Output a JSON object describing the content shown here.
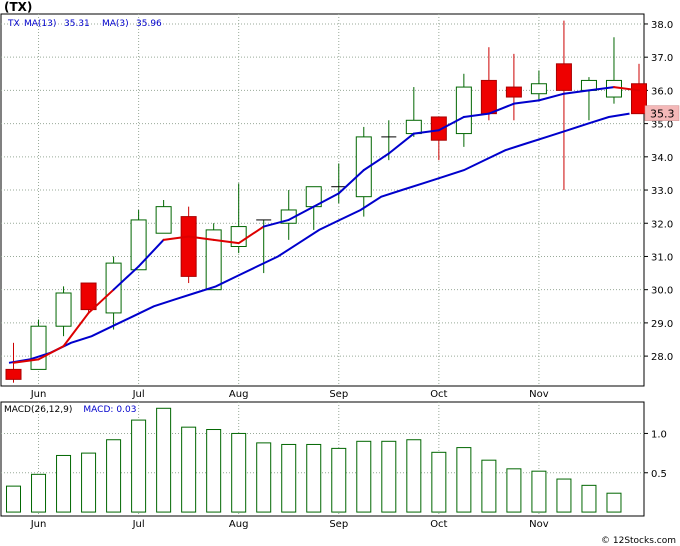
{
  "title": "(TX)",
  "footer": "© 12Stocks.com",
  "colors": {
    "ma_long": "#0000cc",
    "ma_short": "#dd0000",
    "up_candle": "#006600",
    "down_candle": "#ee0000",
    "macd": "#006600",
    "grid": "#99aa99",
    "last_price_label_bg": "#f4b8b8"
  },
  "chart_data": [
    {
      "type": "candlestick",
      "ticker": "TX",
      "legend": [
        {
          "label": "TX",
          "value": "",
          "color": "#0000cc"
        },
        {
          "label": "MA(13)",
          "value": "35.31",
          "color": "#0000cc"
        },
        {
          "label": "MA(3)",
          "value": "35.96",
          "color": "#0000cc"
        }
      ],
      "last_price_label": "35.3",
      "y_ticks": [
        "28.0",
        "29.0",
        "30.0",
        "31.0",
        "32.0",
        "33.0",
        "34.0",
        "35.0",
        "36.0",
        "37.0",
        "38.0"
      ],
      "ylim": [
        27.1,
        38.3
      ],
      "x_labels": [
        {
          "label": "Jun",
          "index": 1
        },
        {
          "label": "Jul",
          "index": 5
        },
        {
          "label": "Aug",
          "index": 9
        },
        {
          "label": "Sep",
          "index": 13
        },
        {
          "label": "Oct",
          "index": 17
        },
        {
          "label": "Nov",
          "index": 21
        }
      ],
      "candles": [
        {
          "o": 27.6,
          "h": 28.4,
          "l": 27.2,
          "c": 27.3
        },
        {
          "o": 27.6,
          "h": 29.1,
          "l": 27.6,
          "c": 28.9
        },
        {
          "o": 28.9,
          "h": 30.1,
          "l": 28.6,
          "c": 29.9
        },
        {
          "o": 30.2,
          "h": 30.2,
          "l": 29.3,
          "c": 29.4
        },
        {
          "o": 29.3,
          "h": 31.0,
          "l": 28.8,
          "c": 30.8
        },
        {
          "o": 30.6,
          "h": 32.4,
          "l": 30.6,
          "c": 32.1
        },
        {
          "o": 31.7,
          "h": 32.7,
          "l": 31.7,
          "c": 32.5
        },
        {
          "o": 32.2,
          "h": 32.5,
          "l": 30.2,
          "c": 30.4
        },
        {
          "o": 30.0,
          "h": 32.0,
          "l": 30.0,
          "c": 31.8
        },
        {
          "o": 31.3,
          "h": 33.2,
          "l": 31.1,
          "c": 31.9
        },
        {
          "o": 32.1,
          "h": 32.1,
          "l": 30.5,
          "c": 32.1
        },
        {
          "o": 32.0,
          "h": 33.0,
          "l": 31.5,
          "c": 32.4
        },
        {
          "o": 32.5,
          "h": 33.1,
          "l": 31.8,
          "c": 33.1
        },
        {
          "o": 33.1,
          "h": 33.8,
          "l": 32.6,
          "c": 33.1
        },
        {
          "o": 32.8,
          "h": 34.9,
          "l": 32.2,
          "c": 34.6
        },
        {
          "o": 34.6,
          "h": 35.1,
          "l": 33.9,
          "c": 34.6
        },
        {
          "o": 34.7,
          "h": 36.1,
          "l": 34.6,
          "c": 35.1
        },
        {
          "o": 35.2,
          "h": 35.2,
          "l": 33.9,
          "c": 34.5
        },
        {
          "o": 34.7,
          "h": 36.5,
          "l": 34.3,
          "c": 36.1
        },
        {
          "o": 36.3,
          "h": 37.3,
          "l": 35.1,
          "c": 35.3
        },
        {
          "o": 36.1,
          "h": 37.1,
          "l": 35.1,
          "c": 35.8
        },
        {
          "o": 35.9,
          "h": 36.6,
          "l": 35.7,
          "c": 36.2
        },
        {
          "o": 36.8,
          "h": 38.1,
          "l": 33.0,
          "c": 36.0
        },
        {
          "o": 36.0,
          "h": 36.4,
          "l": 35.1,
          "c": 36.3
        },
        {
          "o": 35.8,
          "h": 37.6,
          "l": 35.6,
          "c": 36.3
        },
        {
          "o": 36.2,
          "h": 36.8,
          "l": 35.3,
          "c": 35.3
        }
      ],
      "ma_long": [
        27.8,
        27.9,
        28.1,
        28.4,
        28.6,
        28.9,
        29.2,
        29.5,
        29.7,
        29.9,
        30.1,
        30.4,
        30.7,
        31.0,
        31.4,
        31.8,
        32.1,
        32.4,
        32.8,
        33.0,
        33.2,
        33.4,
        33.6,
        33.9,
        34.2,
        34.4,
        34.6,
        34.8,
        35.0,
        35.2,
        35.3
      ],
      "ma_short": [
        27.8,
        27.9,
        28.3,
        29.3,
        30.0,
        30.7,
        31.5,
        31.6,
        31.5,
        31.4,
        31.9,
        32.1,
        32.5,
        32.9,
        33.6,
        34.1,
        34.7,
        34.8,
        35.2,
        35.3,
        35.6,
        35.7,
        35.9,
        36.0,
        36.1,
        36.0
      ],
      "ma_short_red_from": 0,
      "ma_short_red_ranges": [
        [
          0,
          4
        ],
        [
          6,
          10
        ],
        [
          24,
          25
        ]
      ]
    },
    {
      "type": "bar",
      "legend": [
        {
          "label": "MACD(26,12,9)",
          "value": "",
          "color": "#000000"
        },
        {
          "label": "MACD:",
          "value": "0.03",
          "color": "#0000cc"
        }
      ],
      "y_ticks": [
        "0.5",
        "1.0"
      ],
      "ylim": [
        -0.05,
        1.4
      ],
      "values": [
        0.33,
        0.48,
        0.72,
        0.75,
        0.92,
        1.17,
        1.32,
        1.08,
        1.05,
        1.0,
        0.88,
        0.86,
        0.86,
        0.81,
        0.9,
        0.9,
        0.92,
        0.76,
        0.82,
        0.66,
        0.55,
        0.52,
        0.42,
        0.34,
        0.24
      ]
    }
  ]
}
